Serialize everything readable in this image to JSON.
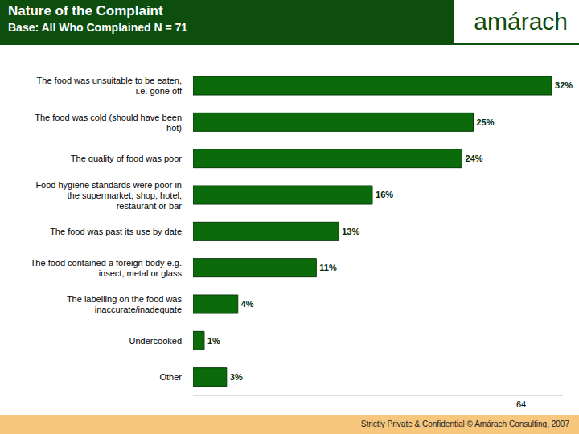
{
  "chart_data": {
    "type": "bar",
    "orientation": "horizontal",
    "title": "Nature of the Complaint",
    "subtitle": "Base: All Who Complained N = 71",
    "categories": [
      "The food was unsuitable to be eaten, i.e. gone off",
      "The food was cold (should have been hot)",
      "The quality of food was poor",
      "Food hygiene standards were poor in the supermarket, shop, hotel, restaurant or bar",
      "The food was past its use by date",
      "The food contained a foreign body e.g. insect, metal or glass",
      "The labelling on the food was inaccurate/inadequate",
      "Undercooked",
      "Other"
    ],
    "values": [
      32,
      25,
      24,
      16,
      13,
      11,
      4,
      1,
      3
    ],
    "value_labels": [
      "32%",
      "25%",
      "24%",
      "16%",
      "13%",
      "11%",
      "4%",
      "1%",
      "3%"
    ],
    "color": "#0b6b0b",
    "xlim": [
      0,
      33
    ],
    "tick_labels": "y",
    "data_labels": true,
    "grid": false
  },
  "logo": "amárach",
  "page_number": "64",
  "footer": "Strictly Private & Confidential © Amárach Consulting, 2007"
}
